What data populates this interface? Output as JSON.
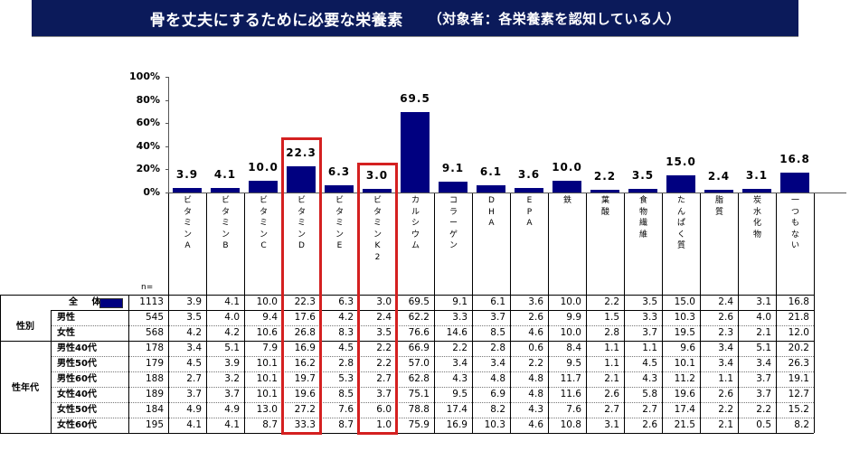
{
  "header": {
    "title": "骨を丈夫にするために必要な栄養素",
    "subtitle": "（対象者：各栄養素を認知している人）"
  },
  "axis": {
    "ticks": [
      "100%",
      "80%",
      "60%",
      "40%",
      "20%",
      "0%"
    ]
  },
  "table": {
    "n_label": "n=",
    "group_gender": "性別",
    "group_age": "性年代",
    "total_label": "全 体",
    "columns": [
      "ビタミンA",
      "ビタミンB",
      "ビタミンC",
      "ビタミンD",
      "ビタミンE",
      "ビタミンK2",
      "カルシウム",
      "コラーゲン",
      "DHA",
      "EPA",
      "鉄",
      "葉酸",
      "食物繊維",
      "たんぱく質",
      "脂質",
      "炭水化物",
      "一つもない"
    ],
    "rows": [
      {
        "label": "全 体",
        "n": "1113",
        "values": [
          "3.9",
          "4.1",
          "10.0",
          "22.3",
          "6.3",
          "3.0",
          "69.5",
          "9.1",
          "6.1",
          "3.6",
          "10.0",
          "2.2",
          "3.5",
          "15.0",
          "2.4",
          "3.1",
          "16.8"
        ]
      },
      {
        "label": "男性",
        "n": "545",
        "values": [
          "3.5",
          "4.0",
          "9.4",
          "17.6",
          "4.2",
          "2.4",
          "62.2",
          "3.3",
          "3.7",
          "2.6",
          "9.9",
          "1.5",
          "3.3",
          "10.3",
          "2.6",
          "4.0",
          "21.8"
        ]
      },
      {
        "label": "女性",
        "n": "568",
        "values": [
          "4.2",
          "4.2",
          "10.6",
          "26.8",
          "8.3",
          "3.5",
          "76.6",
          "14.6",
          "8.5",
          "4.6",
          "10.0",
          "2.8",
          "3.7",
          "19.5",
          "2.3",
          "2.1",
          "12.0"
        ]
      },
      {
        "label": "男性40代",
        "n": "178",
        "values": [
          "3.4",
          "5.1",
          "7.9",
          "16.9",
          "4.5",
          "2.2",
          "66.9",
          "2.2",
          "2.8",
          "0.6",
          "8.4",
          "1.1",
          "1.1",
          "9.6",
          "3.4",
          "5.1",
          "20.2"
        ]
      },
      {
        "label": "男性50代",
        "n": "179",
        "values": [
          "4.5",
          "3.9",
          "10.1",
          "16.2",
          "2.8",
          "2.2",
          "57.0",
          "3.4",
          "3.4",
          "2.2",
          "9.5",
          "1.1",
          "4.5",
          "10.1",
          "3.4",
          "3.4",
          "26.3"
        ]
      },
      {
        "label": "男性60代",
        "n": "188",
        "values": [
          "2.7",
          "3.2",
          "10.1",
          "19.7",
          "5.3",
          "2.7",
          "62.8",
          "4.3",
          "4.8",
          "4.8",
          "11.7",
          "2.1",
          "4.3",
          "11.2",
          "1.1",
          "3.7",
          "19.1"
        ]
      },
      {
        "label": "女性40代",
        "n": "189",
        "values": [
          "3.7",
          "3.7",
          "10.1",
          "19.6",
          "8.5",
          "3.7",
          "75.1",
          "9.5",
          "6.9",
          "4.8",
          "11.6",
          "2.6",
          "5.8",
          "19.6",
          "2.6",
          "3.7",
          "12.7"
        ]
      },
      {
        "label": "女性50代",
        "n": "184",
        "values": [
          "4.9",
          "4.9",
          "13.0",
          "27.2",
          "7.6",
          "6.0",
          "78.8",
          "17.4",
          "8.2",
          "4.3",
          "7.6",
          "2.7",
          "2.7",
          "17.4",
          "2.2",
          "2.2",
          "15.2"
        ]
      },
      {
        "label": "女性60代",
        "n": "195",
        "values": [
          "4.1",
          "4.1",
          "8.7",
          "33.3",
          "8.7",
          "1.0",
          "75.9",
          "16.9",
          "10.3",
          "4.6",
          "10.8",
          "3.1",
          "2.6",
          "21.5",
          "2.1",
          "0.5",
          "8.2"
        ]
      }
    ]
  },
  "colors": {
    "bar": "#000080",
    "title_bg": "#0b1a5a",
    "highlight": "#d42020"
  },
  "highlights": [
    "ビタミンD",
    "ビタミンK2"
  ],
  "chart_data": {
    "type": "bar",
    "title": "骨を丈夫にするために必要な栄養素（対象者：各栄養素を認知している人）",
    "xlabel": "",
    "ylabel": "",
    "ylim": [
      0,
      100
    ],
    "yticks": [
      "0%",
      "20%",
      "40%",
      "60%",
      "80%",
      "100%"
    ],
    "categories": [
      "ビタミンA",
      "ビタミンB",
      "ビタミンC",
      "ビタミンD",
      "ビタミンE",
      "ビタミンK2",
      "カルシウム",
      "コラーゲン",
      "DHA",
      "EPA",
      "鉄",
      "葉酸",
      "食物繊維",
      "たんぱく質",
      "脂質",
      "炭水化物",
      "一つもない"
    ],
    "values": [
      3.9,
      4.1,
      10.0,
      22.3,
      6.3,
      3.0,
      69.5,
      9.1,
      6.1,
      3.6,
      10.0,
      2.2,
      3.5,
      15.0,
      2.4,
      3.1,
      16.8
    ],
    "legend": [
      "全体 (n=1113)"
    ],
    "annotations": [
      "ビタミンD highlighted with red box",
      "ビタミンK2 highlighted with red box"
    ],
    "grid": false,
    "table_series": [
      {
        "name": "全体",
        "n": 1113,
        "values": [
          3.9,
          4.1,
          10.0,
          22.3,
          6.3,
          3.0,
          69.5,
          9.1,
          6.1,
          3.6,
          10.0,
          2.2,
          3.5,
          15.0,
          2.4,
          3.1,
          16.8
        ]
      },
      {
        "name": "男性",
        "n": 545,
        "values": [
          3.5,
          4.0,
          9.4,
          17.6,
          4.2,
          2.4,
          62.2,
          3.3,
          3.7,
          2.6,
          9.9,
          1.5,
          3.3,
          10.3,
          2.6,
          4.0,
          21.8
        ]
      },
      {
        "name": "女性",
        "n": 568,
        "values": [
          4.2,
          4.2,
          10.6,
          26.8,
          8.3,
          3.5,
          76.6,
          14.6,
          8.5,
          4.6,
          10.0,
          2.8,
          3.7,
          19.5,
          2.3,
          2.1,
          12.0
        ]
      },
      {
        "name": "男性40代",
        "n": 178,
        "values": [
          3.4,
          5.1,
          7.9,
          16.9,
          4.5,
          2.2,
          66.9,
          2.2,
          2.8,
          0.6,
          8.4,
          1.1,
          1.1,
          9.6,
          3.4,
          5.1,
          20.2
        ]
      },
      {
        "name": "男性50代",
        "n": 179,
        "values": [
          4.5,
          3.9,
          10.1,
          16.2,
          2.8,
          2.2,
          57.0,
          3.4,
          3.4,
          2.2,
          9.5,
          1.1,
          4.5,
          10.1,
          3.4,
          3.4,
          26.3
        ]
      },
      {
        "name": "男性60代",
        "n": 188,
        "values": [
          2.7,
          3.2,
          10.1,
          19.7,
          5.3,
          2.7,
          62.8,
          4.3,
          4.8,
          4.8,
          11.7,
          2.1,
          4.3,
          11.2,
          1.1,
          3.7,
          19.1
        ]
      },
      {
        "name": "女性40代",
        "n": 189,
        "values": [
          3.7,
          3.7,
          10.1,
          19.6,
          8.5,
          3.7,
          75.1,
          9.5,
          6.9,
          4.8,
          11.6,
          2.6,
          5.8,
          19.6,
          2.6,
          3.7,
          12.7
        ]
      },
      {
        "name": "女性50代",
        "n": 184,
        "values": [
          4.9,
          4.9,
          13.0,
          27.2,
          7.6,
          6.0,
          78.8,
          17.4,
          8.2,
          4.3,
          7.6,
          2.7,
          2.7,
          17.4,
          2.2,
          2.2,
          15.2
        ]
      },
      {
        "name": "女性60代",
        "n": 195,
        "values": [
          4.1,
          4.1,
          8.7,
          33.3,
          8.7,
          1.0,
          75.9,
          16.9,
          10.3,
          4.6,
          10.8,
          3.1,
          2.6,
          21.5,
          2.1,
          0.5,
          8.2
        ]
      }
    ]
  }
}
